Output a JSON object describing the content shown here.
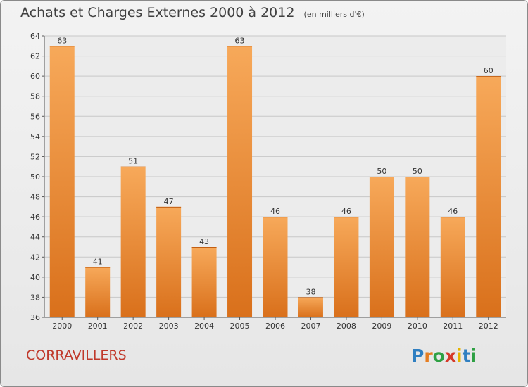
{
  "title": "Achats et Charges Externes 2000 à 2012",
  "unit": "(en milliers d'€)",
  "commune": "CORRAVILLERS",
  "logo": {
    "letters": [
      "P",
      "r",
      "o",
      "x",
      "i",
      "t",
      "i"
    ],
    "colors": [
      "#2f7fc1",
      "#e67e22",
      "#2ea043",
      "#d63a2a",
      "#e6b400",
      "#2f7fc1",
      "#2ea043"
    ]
  },
  "chart_data": {
    "type": "bar",
    "categories": [
      "2000",
      "2001",
      "2002",
      "2003",
      "2004",
      "2005",
      "2006",
      "2007",
      "2008",
      "2009",
      "2010",
      "2011",
      "2012"
    ],
    "values": [
      63,
      41,
      51,
      47,
      43,
      63,
      46,
      38,
      46,
      50,
      50,
      46,
      60
    ],
    "ylim": [
      36,
      64
    ],
    "yticks": [
      36,
      38,
      40,
      42,
      44,
      46,
      48,
      50,
      52,
      54,
      56,
      58,
      60,
      62,
      64
    ],
    "grid": true,
    "bar_color": "#f0922f"
  }
}
